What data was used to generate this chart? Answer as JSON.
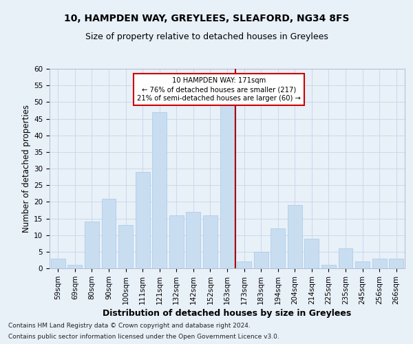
{
  "title1": "10, HAMPDEN WAY, GREYLEES, SLEAFORD, NG34 8FS",
  "title2": "Size of property relative to detached houses in Greylees",
  "xlabel": "Distribution of detached houses by size in Greylees",
  "ylabel": "Number of detached properties",
  "footnote1": "Contains HM Land Registry data © Crown copyright and database right 2024.",
  "footnote2": "Contains public sector information licensed under the Open Government Licence v3.0.",
  "bar_labels": [
    "59sqm",
    "69sqm",
    "80sqm",
    "90sqm",
    "100sqm",
    "111sqm",
    "121sqm",
    "132sqm",
    "142sqm",
    "152sqm",
    "163sqm",
    "173sqm",
    "183sqm",
    "194sqm",
    "204sqm",
    "214sqm",
    "225sqm",
    "235sqm",
    "245sqm",
    "256sqm",
    "266sqm"
  ],
  "bar_values": [
    3,
    1,
    14,
    21,
    13,
    29,
    47,
    16,
    17,
    16,
    49,
    2,
    5,
    12,
    19,
    9,
    1,
    6,
    2,
    3,
    3
  ],
  "bar_color": "#c8ddf0",
  "bar_edgecolor": "#a8c8e8",
  "grid_color": "#c8d4e8",
  "background_color": "#e8f0f8",
  "annotation_text": "10 HAMPDEN WAY: 171sqm\n← 76% of detached houses are smaller (217)\n21% of semi-detached houses are larger (60) →",
  "vline_color": "#aa0000",
  "vline_x_index": 10,
  "ylim": [
    0,
    60
  ],
  "yticks": [
    0,
    5,
    10,
    15,
    20,
    25,
    30,
    35,
    40,
    45,
    50,
    55,
    60
  ],
  "title1_fontsize": 10,
  "title2_fontsize": 9,
  "axis_label_fontsize": 8.5,
  "tick_fontsize": 7.5,
  "footnote_fontsize": 6.5
}
